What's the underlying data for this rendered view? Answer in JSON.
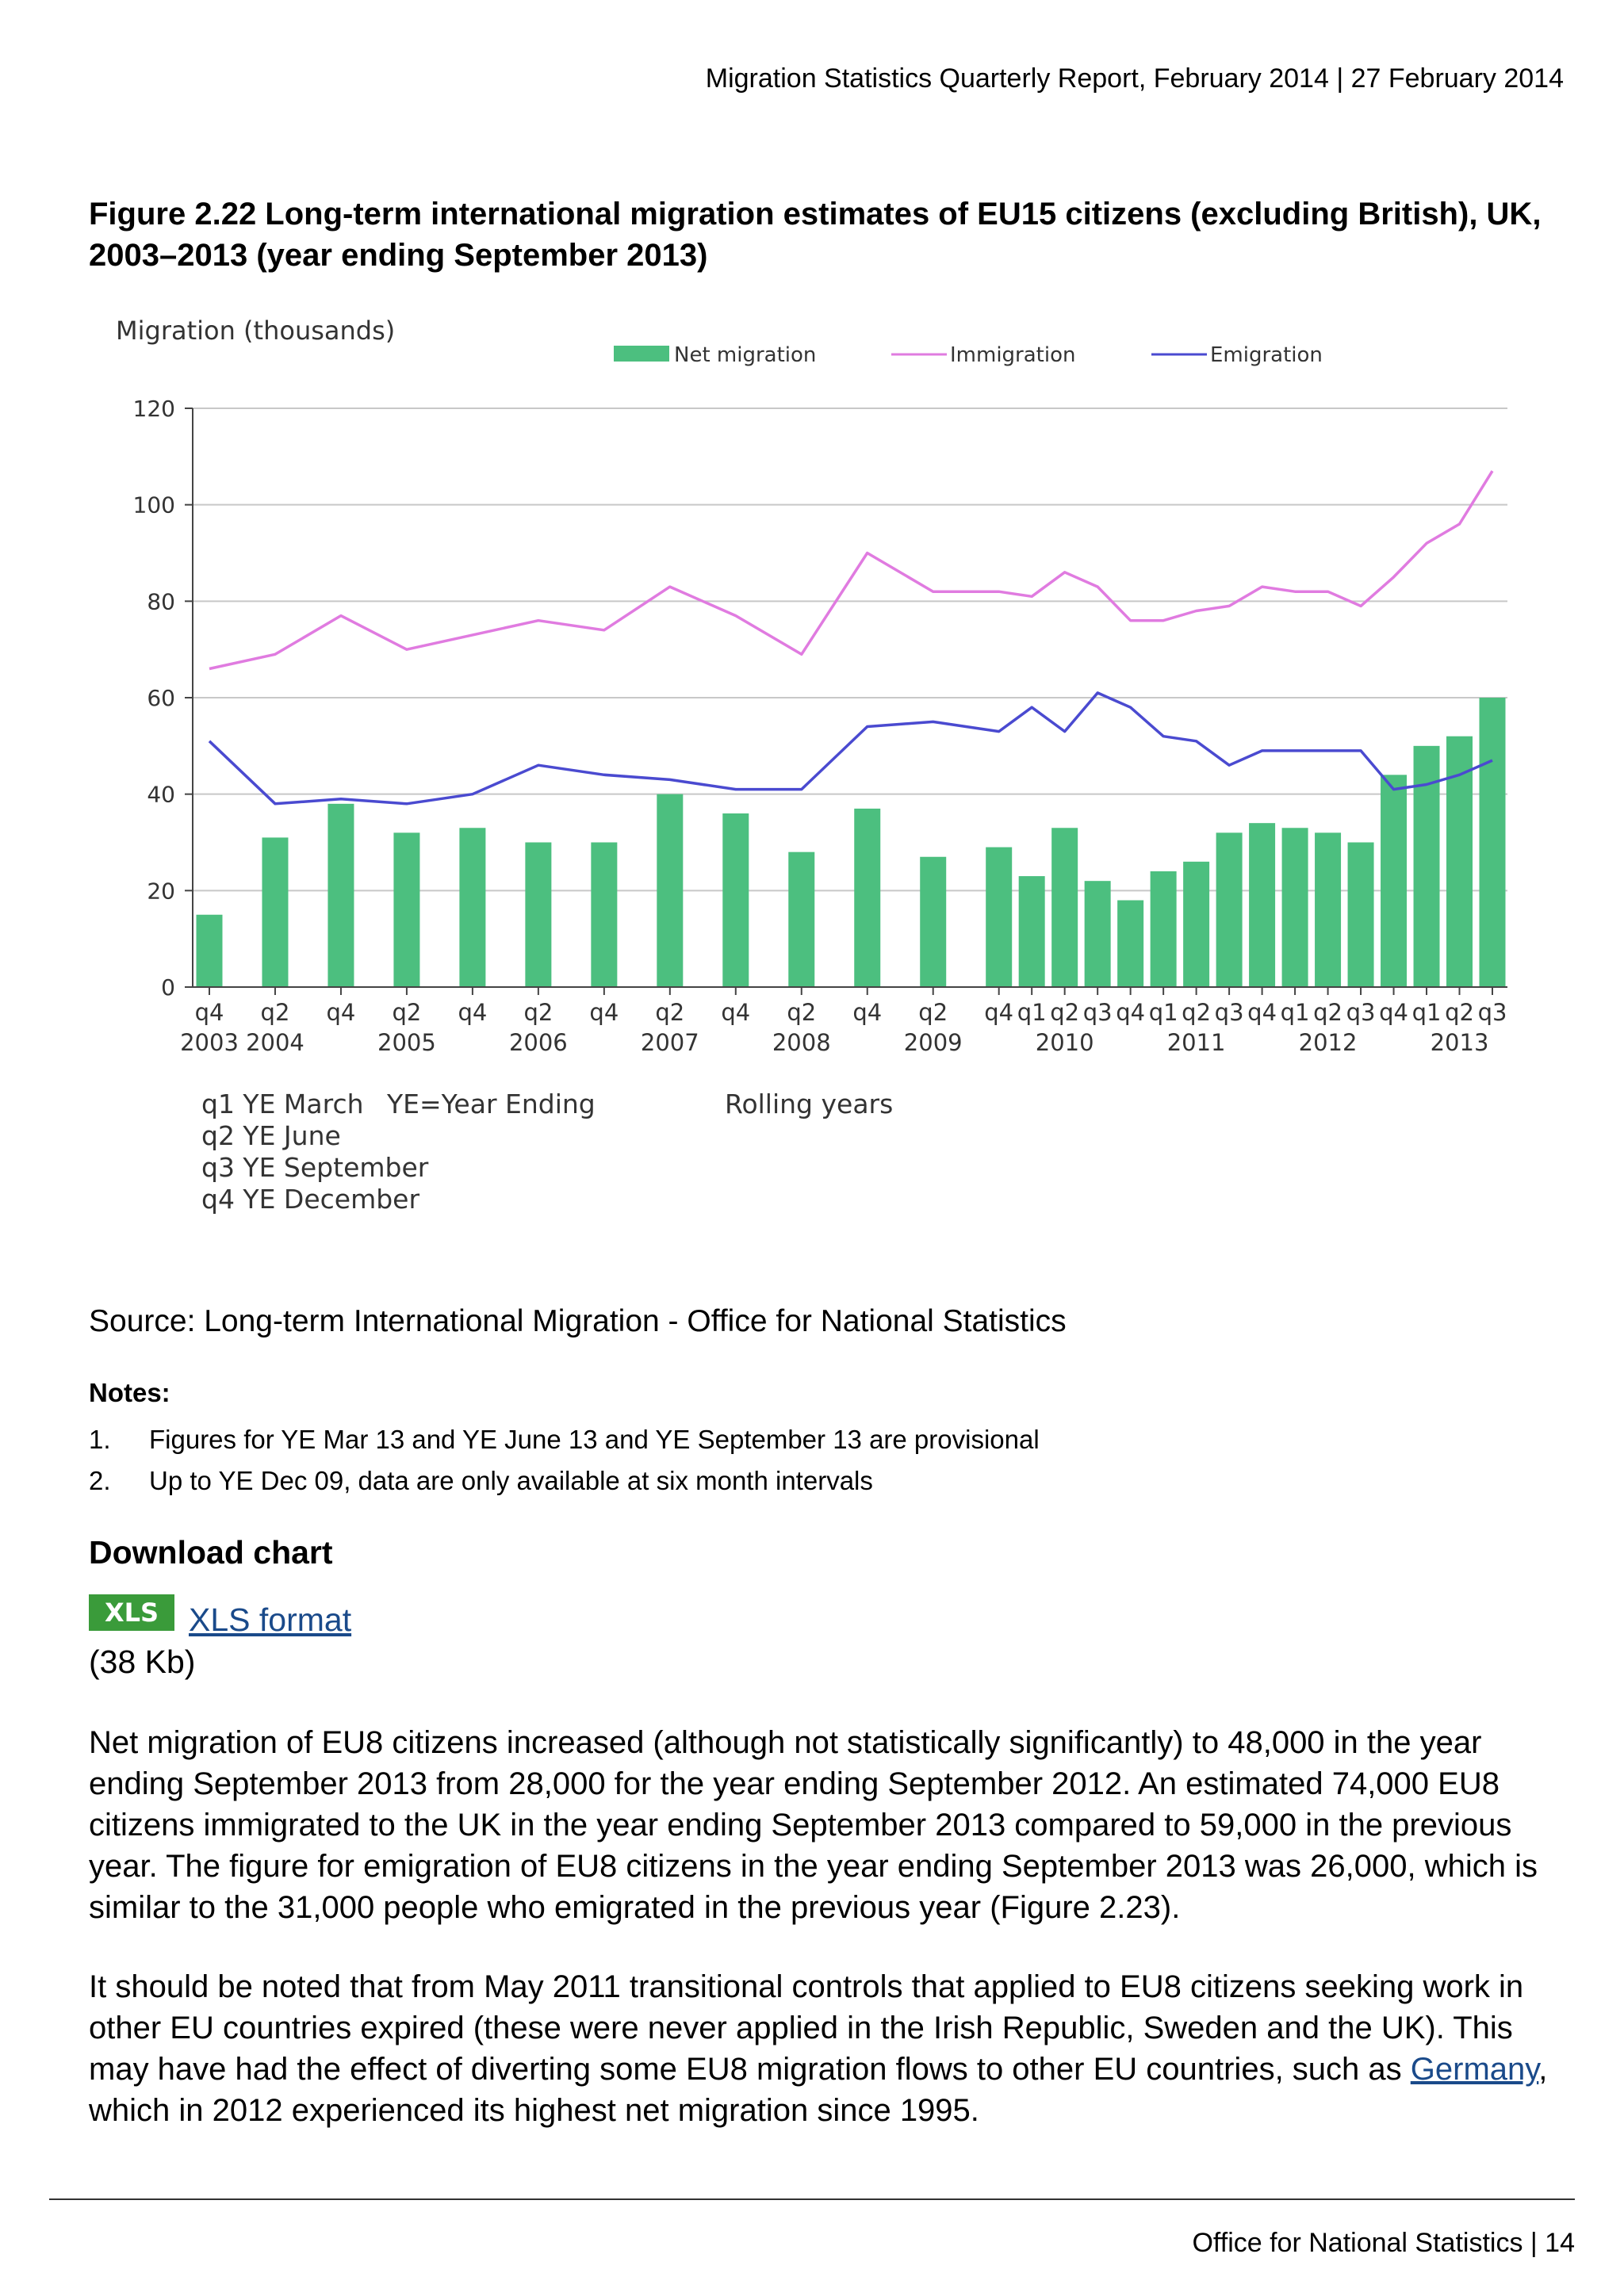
{
  "header": {
    "report_line": "Migration Statistics Quarterly Report, February 2014 | 27 February 2014"
  },
  "figure": {
    "title": "Figure 2.22 Long-term international migration estimates of EU15 citizens (excluding British), UK, 2003–2013 (year ending September 2013)"
  },
  "chart_data": {
    "type": "bar+line",
    "ylabel": "Migration (thousands)",
    "ylim": [
      0,
      120
    ],
    "yticks": [
      0,
      20,
      40,
      60,
      80,
      100,
      120
    ],
    "grid": true,
    "legend_placement": "top",
    "legend": [
      "Net migration",
      "Immigration",
      "Emigration"
    ],
    "colors": {
      "net": "#4cbf7f",
      "immigration": "#e07be0",
      "emigration": "#4a4ad0"
    },
    "x_ticks": [
      "q4",
      "q2",
      "q4",
      "q2",
      "q4",
      "q2",
      "q4",
      "q2",
      "q4",
      "q2",
      "q4",
      "q2",
      "q4",
      "q1",
      "q2",
      "q3",
      "q4",
      "q1",
      "q2",
      "q3",
      "q4",
      "q1",
      "q2",
      "q3",
      "q4",
      "q1",
      "q2",
      "q3"
    ],
    "year_labels": [
      {
        "index": 0,
        "label": "2003"
      },
      {
        "index": 1,
        "label": "2004"
      },
      {
        "index": 3,
        "label": "2005"
      },
      {
        "index": 5,
        "label": "2006"
      },
      {
        "index": 7,
        "label": "2007"
      },
      {
        "index": 9,
        "label": "2008"
      },
      {
        "index": 11,
        "label": "2009"
      },
      {
        "index": 14,
        "label": "2010"
      },
      {
        "index": 18,
        "label": "2011"
      },
      {
        "index": 22,
        "label": "2012"
      },
      {
        "index": 26,
        "label": "2013"
      }
    ],
    "x_positions": [
      0,
      2,
      4,
      6,
      8,
      10,
      12,
      14,
      16,
      18,
      20,
      22,
      24,
      25,
      26,
      27,
      28,
      29,
      30,
      31,
      32,
      33,
      34,
      35,
      36,
      37,
      38,
      39
    ],
    "series": [
      {
        "name": "Net migration",
        "kind": "bar",
        "values": [
          15,
          31,
          38,
          32,
          33,
          30,
          30,
          40,
          36,
          28,
          37,
          27,
          29,
          23,
          33,
          22,
          18,
          24,
          26,
          32,
          34,
          33,
          32,
          30,
          44,
          50,
          52,
          60
        ]
      },
      {
        "name": "Immigration",
        "kind": "line",
        "values": [
          66,
          69,
          77,
          70,
          73,
          76,
          74,
          83,
          77,
          69,
          90,
          82,
          82,
          81,
          86,
          83,
          76,
          76,
          78,
          79,
          83,
          82,
          82,
          79,
          85,
          92,
          96,
          107
        ]
      },
      {
        "name": "Emigration",
        "kind": "line",
        "values": [
          51,
          38,
          39,
          38,
          40,
          46,
          44,
          43,
          41,
          41,
          54,
          55,
          53,
          58,
          53,
          61,
          58,
          52,
          51,
          46,
          49,
          49,
          49,
          49,
          41,
          42,
          44,
          47
        ]
      }
    ],
    "key_lines": [
      "q1 YE March",
      "q2 YE June",
      "q3 YE September",
      "q4 YE December"
    ],
    "key_note": "YE=Year Ending",
    "rolling_note": "Rolling years"
  },
  "source": "Source: Long-term International Migration - Office for National Statistics",
  "notes": {
    "title": "Notes:",
    "items": [
      {
        "num": "1.",
        "text": "Figures for YE Mar 13 and YE June 13 and YE September 13 are provisional"
      },
      {
        "num": "2.",
        "text": "Up to YE Dec 09, data are only available at six month intervals"
      }
    ]
  },
  "download": {
    "title": "Download chart",
    "badge": "XLS",
    "link_label": "XLS format",
    "size": "(38 Kb)"
  },
  "paragraphs": {
    "p1": "Net migration of EU8 citizens increased (although not statistically significantly) to 48,000 in the year ending September 2013 from 28,000 for the year ending September 2012. An estimated 74,000 EU8 citizens immigrated to the UK in the year ending September 2013 compared to 59,000 in the previous year. The figure for emigration of EU8 citizens in the year ending September 2013 was 26,000, which is similar to the 31,000 people who emigrated in the previous year (Figure 2.23).",
    "p2_before": "It should be noted that from May 2011 transitional controls that applied to EU8 citizens seeking work in other EU countries expired (these were never applied in the Irish Republic, Sweden and the UK). This may have had the effect of diverting some EU8 migration flows to other EU countries, such as ",
    "p2_link": "Germany",
    "p2_after": ", which in 2012 experienced its highest net migration since 1995."
  },
  "footer": {
    "text": "Office for National Statistics | 14"
  }
}
